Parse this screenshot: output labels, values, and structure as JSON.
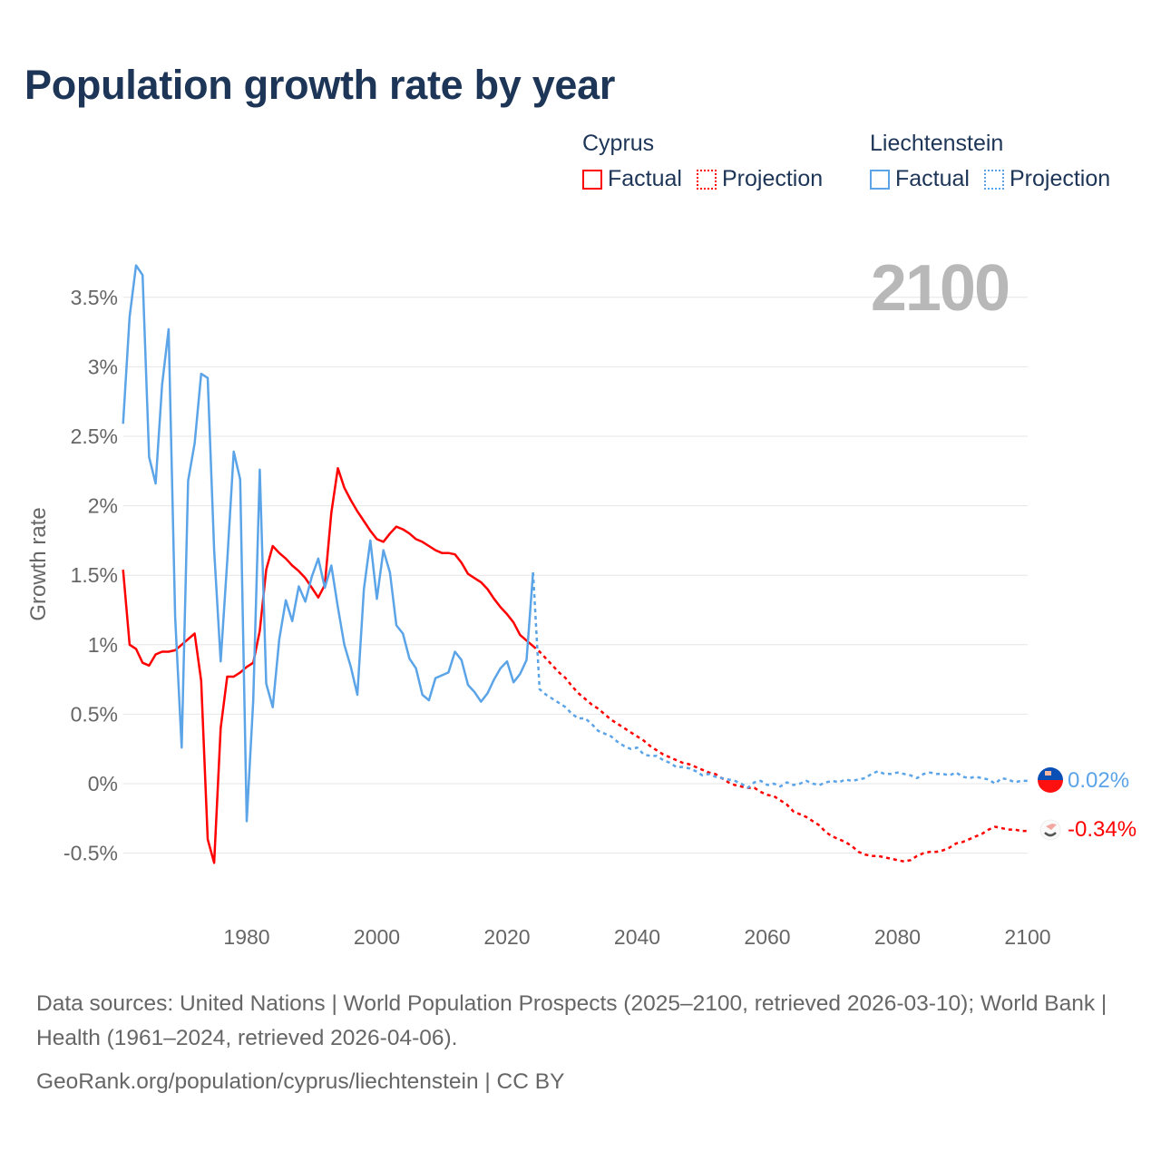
{
  "title": "Population growth rate by year",
  "legend": {
    "groups": [
      {
        "name": "Cyprus",
        "color": "#ff0000",
        "factual": "Factual",
        "projection": "Projection"
      },
      {
        "name": "Liechtenstein",
        "color": "#5ba4e8",
        "factual": "Factual",
        "projection": "Projection"
      }
    ]
  },
  "year_indicator": "2100",
  "end_labels": {
    "liechtenstein": "0.02%",
    "cyprus": "-0.34%"
  },
  "footer": {
    "sources": "Data sources: United Nations | World Population Prospects (2025–2100, retrieved 2026-03-10); World Bank | Health (1961–2024, retrieved 2026-04-06).",
    "link": "GeoRank.org/population/cyprus/liechtenstein | CC BY"
  },
  "chart_data": {
    "type": "line",
    "title": "Population growth rate by year",
    "xlabel": "",
    "ylabel": "Growth rate",
    "xlim": [
      1961,
      2100
    ],
    "ylim": [
      -0.75,
      3.85
    ],
    "x_ticks": [
      1980,
      2000,
      2020,
      2040,
      2060,
      2080,
      2100
    ],
    "x_tick_labels": [
      "1980",
      "2000",
      "2020",
      "2040",
      "2060",
      "2080",
      "2100"
    ],
    "y_ticks": [
      -0.5,
      0,
      0.5,
      1,
      1.5,
      2,
      2.5,
      3,
      3.5
    ],
    "y_tick_labels": [
      "-0.5%",
      "0%",
      "0.5%",
      "1%",
      "1.5%",
      "2%",
      "2.5%",
      "3%",
      "3.5%"
    ],
    "grid": true,
    "legend_position": "top-right",
    "series": [
      {
        "name": "Cyprus Factual",
        "color": "#ff0000",
        "style": "solid",
        "x_start": 1961,
        "values": [
          1.54,
          1.0,
          0.97,
          0.87,
          0.85,
          0.93,
          0.95,
          0.95,
          0.96,
          1.0,
          1.04,
          1.08,
          0.74,
          -0.4,
          -0.57,
          0.4,
          0.77,
          0.77,
          0.8,
          0.84,
          0.87,
          1.1,
          1.54,
          1.71,
          1.66,
          1.62,
          1.57,
          1.53,
          1.48,
          1.41,
          1.34,
          1.43,
          1.95,
          2.27,
          2.13,
          2.04,
          1.96,
          1.89,
          1.82,
          1.76,
          1.74,
          1.8,
          1.85,
          1.83,
          1.8,
          1.76,
          1.74,
          1.71,
          1.68,
          1.66,
          1.66,
          1.65,
          1.59,
          1.51,
          1.48,
          1.45,
          1.4,
          1.33,
          1.27,
          1.22,
          1.16,
          1.07,
          1.03,
          0.99
        ]
      },
      {
        "name": "Cyprus Projection",
        "color": "#ff0000",
        "style": "dotted",
        "x_start": 2024,
        "values": [
          0.99,
          0.95,
          0.9,
          0.85,
          0.8,
          0.76,
          0.7,
          0.65,
          0.61,
          0.57,
          0.54,
          0.5,
          0.46,
          0.43,
          0.4,
          0.37,
          0.34,
          0.31,
          0.27,
          0.24,
          0.21,
          0.19,
          0.17,
          0.15,
          0.14,
          0.12,
          0.1,
          0.08,
          0.07,
          0.04,
          0.01,
          -0.01,
          -0.02,
          -0.03,
          -0.03,
          -0.06,
          -0.08,
          -0.09,
          -0.12,
          -0.15,
          -0.2,
          -0.22,
          -0.24,
          -0.27,
          -0.3,
          -0.35,
          -0.38,
          -0.4,
          -0.42,
          -0.45,
          -0.49,
          -0.51,
          -0.52,
          -0.52,
          -0.53,
          -0.54,
          -0.55,
          -0.56,
          -0.55,
          -0.52,
          -0.5,
          -0.49,
          -0.49,
          -0.48,
          -0.46,
          -0.43,
          -0.42,
          -0.4,
          -0.38,
          -0.36,
          -0.33,
          -0.31,
          -0.32,
          -0.33,
          -0.33,
          -0.34,
          -0.34
        ]
      },
      {
        "name": "Liechtenstein Factual",
        "color": "#5ba4e8",
        "style": "solid",
        "x_start": 1961,
        "values": [
          2.59,
          3.36,
          3.73,
          3.66,
          2.35,
          2.16,
          2.87,
          3.27,
          1.2,
          0.26,
          2.18,
          2.45,
          2.95,
          2.92,
          1.68,
          0.88,
          1.6,
          2.39,
          2.19,
          -0.27,
          0.6,
          2.26,
          0.72,
          0.55,
          1.04,
          1.32,
          1.17,
          1.42,
          1.31,
          1.49,
          1.62,
          1.41,
          1.57,
          1.27,
          1.0,
          0.84,
          0.64,
          1.4,
          1.75,
          1.33,
          1.68,
          1.52,
          1.14,
          1.08,
          0.9,
          0.83,
          0.64,
          0.6,
          0.76,
          0.78,
          0.8,
          0.95,
          0.89,
          0.71,
          0.66,
          0.59,
          0.65,
          0.75,
          0.83,
          0.88,
          0.73,
          0.79,
          0.89,
          1.52
        ]
      },
      {
        "name": "Liechtenstein Projection",
        "color": "#5ba4e8",
        "style": "dotted",
        "x_start": 2024,
        "values": [
          1.52,
          0.68,
          0.64,
          0.61,
          0.58,
          0.55,
          0.5,
          0.47,
          0.47,
          0.43,
          0.38,
          0.36,
          0.34,
          0.3,
          0.27,
          0.25,
          0.26,
          0.21,
          0.2,
          0.2,
          0.17,
          0.15,
          0.12,
          0.12,
          0.11,
          0.09,
          0.06,
          0.07,
          0.05,
          0.04,
          0.03,
          0.02,
          0.0,
          -0.03,
          0.01,
          0.02,
          -0.01,
          0.0,
          -0.02,
          0.01,
          -0.01,
          0.0,
          0.02,
          0.0,
          -0.01,
          0.01,
          0.02,
          0.01,
          0.03,
          0.02,
          0.03,
          0.04,
          0.07,
          0.09,
          0.07,
          0.07,
          0.08,
          0.07,
          0.06,
          0.04,
          0.07,
          0.08,
          0.07,
          0.07,
          0.06,
          0.08,
          0.05,
          0.04,
          0.05,
          0.04,
          0.03,
          0.0,
          0.04,
          0.03,
          0.01,
          0.02,
          0.02
        ]
      }
    ]
  }
}
